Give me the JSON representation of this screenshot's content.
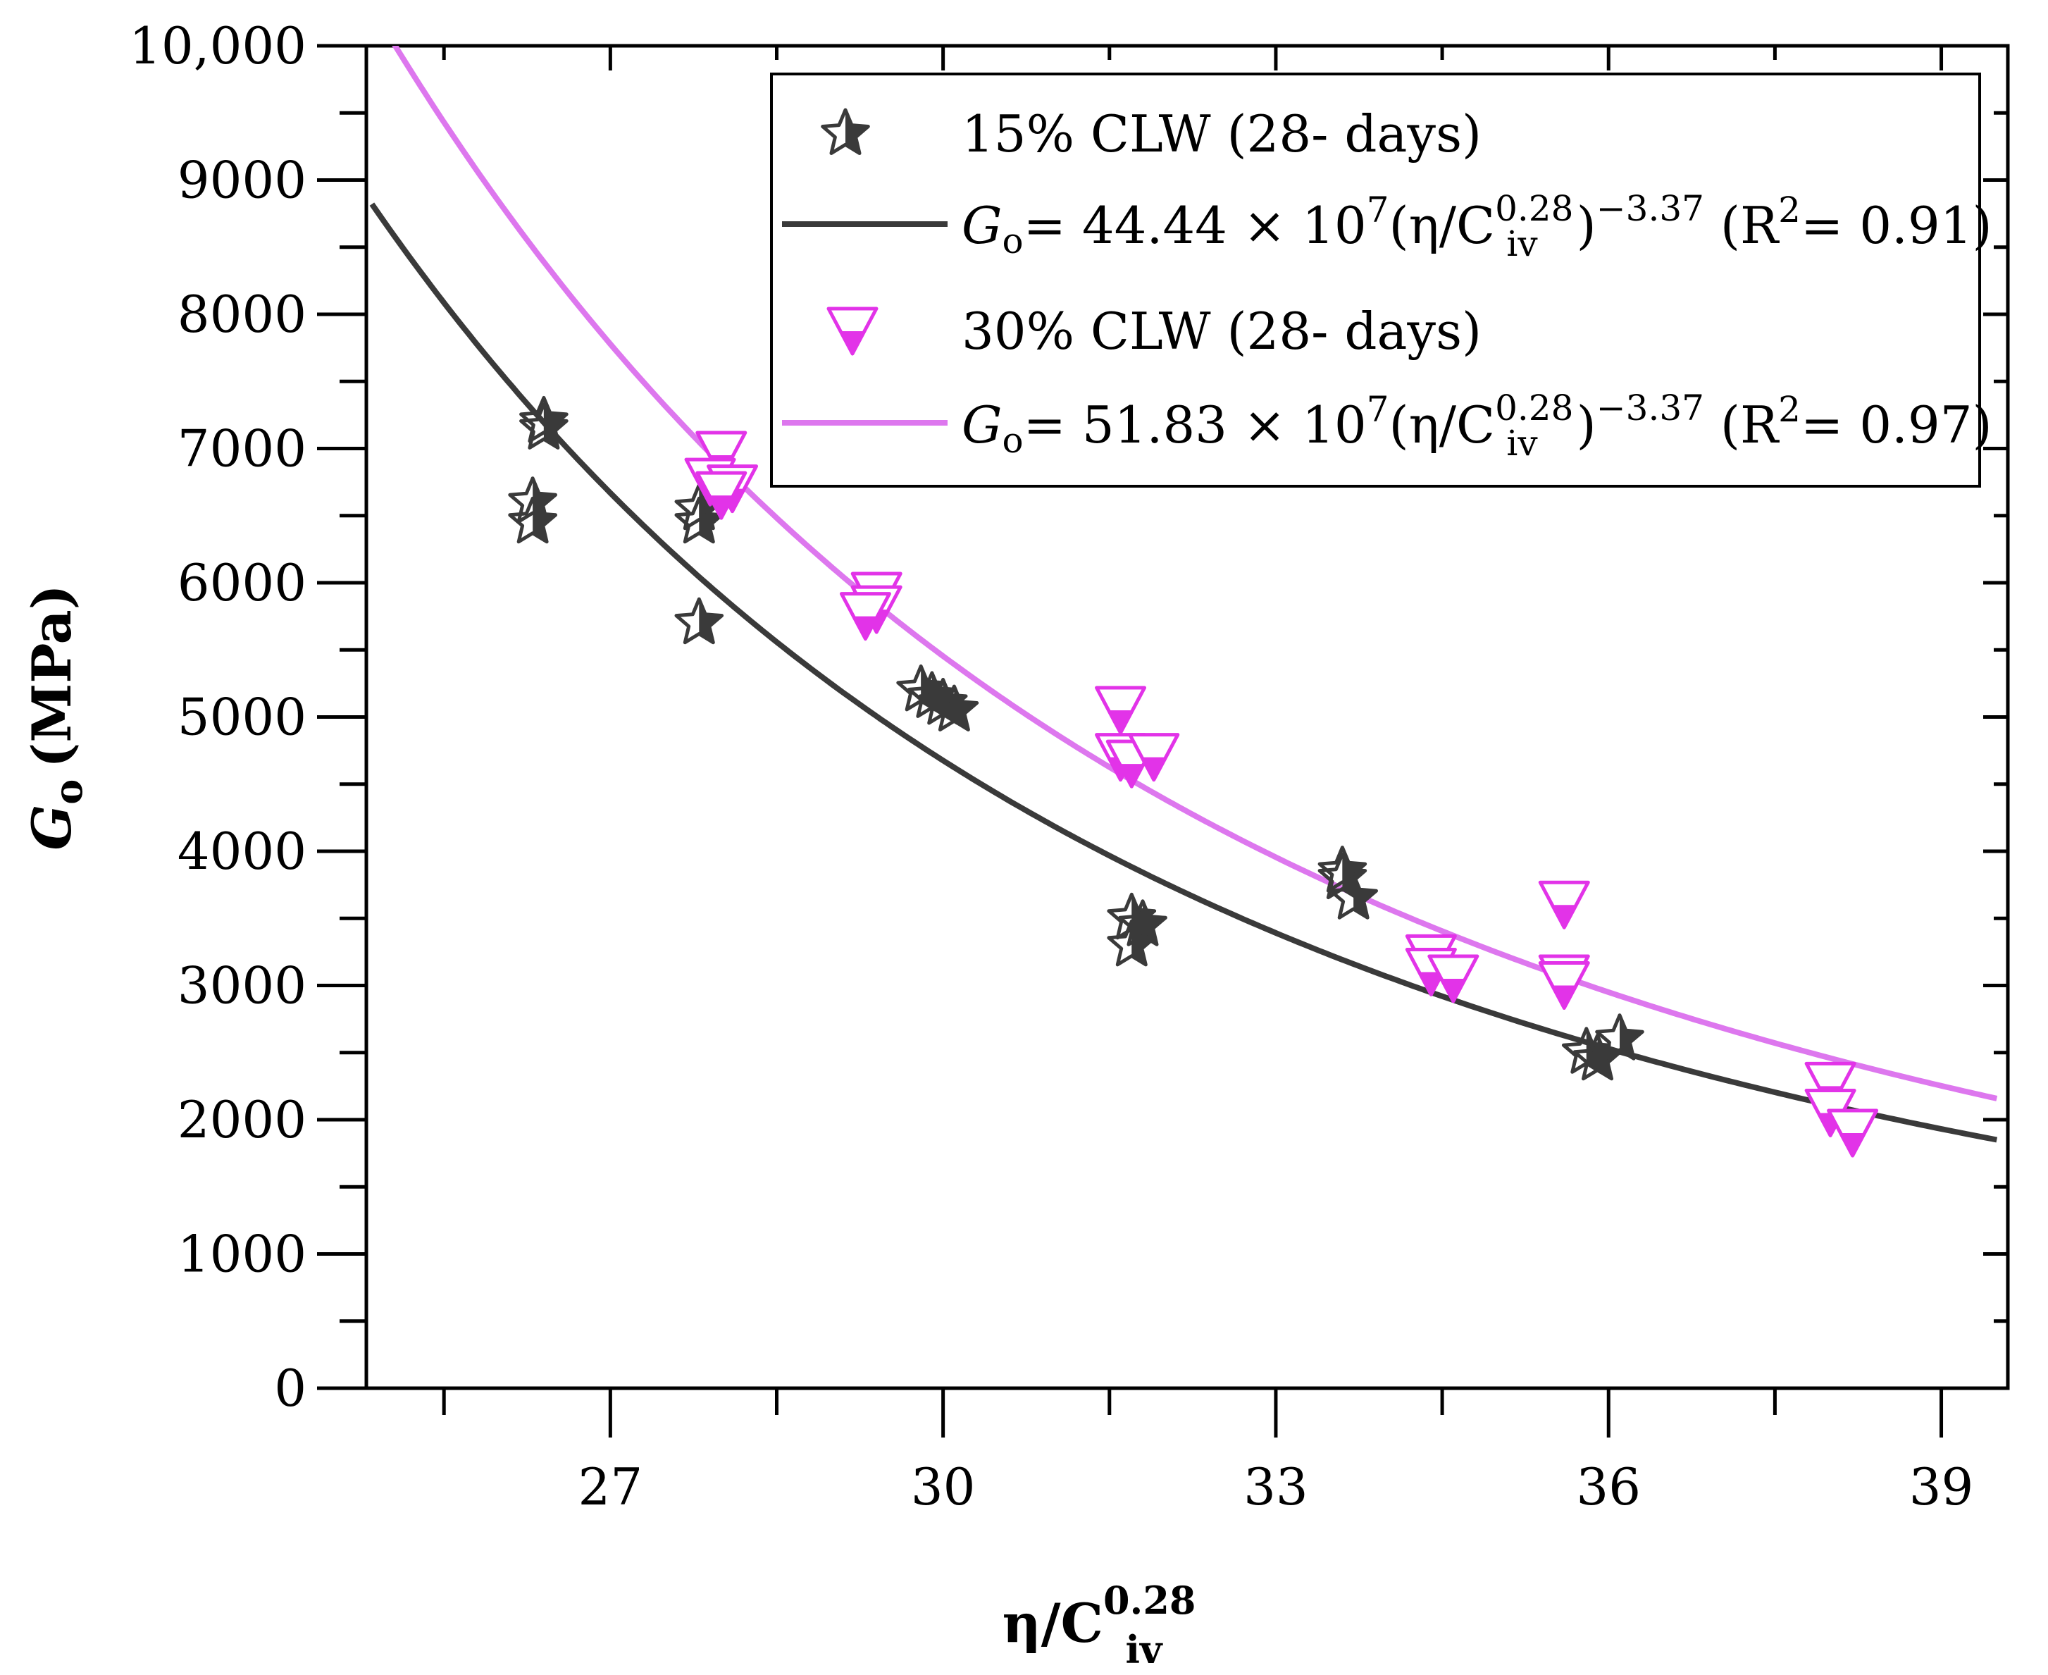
{
  "chart_data": {
    "type": "scatter",
    "xlabel": "η/C",
    "xlabel_sub": "iv",
    "xlabel_sup": "0.28",
    "ylabel": "G",
    "ylabel_sub": "o",
    "ylabel_unit": "(MPa)",
    "xlim": [
      24.8,
      39.6
    ],
    "ylim": [
      0,
      10000
    ],
    "x_ticks": [
      27,
      30,
      33,
      36,
      39
    ],
    "x_tick_labels": [
      "27",
      "30",
      "33",
      "36",
      "39"
    ],
    "x_minor_ticks": [
      25.5,
      28.5,
      31.5,
      34.5,
      37.5
    ],
    "y_ticks": [
      0,
      1000,
      2000,
      3000,
      4000,
      5000,
      6000,
      7000,
      8000,
      9000,
      10000
    ],
    "y_tick_labels": [
      "0",
      "1000",
      "2000",
      "3000",
      "4000",
      "5000",
      "6000",
      "7000",
      "8000",
      "9000",
      "10,000"
    ],
    "y_minor_ticks": [
      500,
      1500,
      2500,
      3500,
      4500,
      5500,
      6500,
      7500,
      8500,
      9500
    ],
    "legend_position": "top-right",
    "series": [
      {
        "name": "15% CLW (28- days)",
        "marker": "star",
        "color": "#3a3a3a",
        "points": [
          [
            26.4,
            7150
          ],
          [
            26.4,
            7200
          ],
          [
            26.3,
            6600
          ],
          [
            26.3,
            6450
          ],
          [
            27.8,
            6550
          ],
          [
            27.8,
            6450
          ],
          [
            27.8,
            5700
          ],
          [
            29.8,
            5200
          ],
          [
            29.9,
            5150
          ],
          [
            30.0,
            5100
          ],
          [
            30.1,
            5050
          ],
          [
            31.7,
            3500
          ],
          [
            31.8,
            3450
          ],
          [
            31.7,
            3300
          ],
          [
            33.6,
            3850
          ],
          [
            33.6,
            3800
          ],
          [
            33.7,
            3650
          ],
          [
            35.8,
            2500
          ],
          [
            35.9,
            2450
          ],
          [
            36.1,
            2600
          ]
        ]
      },
      {
        "name": "30% CLW (28- days)",
        "marker": "triangle-down",
        "color": "#e233e8",
        "points": [
          [
            28.0,
            6950
          ],
          [
            27.9,
            6750
          ],
          [
            28.1,
            6700
          ],
          [
            28.0,
            6650
          ],
          [
            29.4,
            5900
          ],
          [
            29.4,
            5800
          ],
          [
            29.3,
            5750
          ],
          [
            31.6,
            5050
          ],
          [
            31.6,
            4700
          ],
          [
            31.7,
            4650
          ],
          [
            31.9,
            4700
          ],
          [
            34.4,
            3200
          ],
          [
            34.4,
            3100
          ],
          [
            34.6,
            3050
          ],
          [
            35.6,
            3600
          ],
          [
            35.6,
            3050
          ],
          [
            35.6,
            3000
          ],
          [
            38.0,
            2250
          ],
          [
            38.0,
            2050
          ],
          [
            38.2,
            1900
          ]
        ]
      }
    ],
    "fit_lines": [
      {
        "name": "G_o = 44.44 × 10^7(η/C_iv^0.28)^−3.37 (R^2 = 0.91)",
        "color": "#3a3a3a",
        "a": 44.44,
        "exponent": -3.37
      },
      {
        "name": "G_o = 51.83 × 10^7(η/C_iv^0.28)^−3.37 (R^2 = 0.97)",
        "color": "#dd77ee",
        "a": 51.83,
        "exponent": -3.37
      }
    ]
  },
  "legend": {
    "entry1": "15% CLW (28- days)",
    "entry3": "30% CLW (28- days)",
    "fit1": {
      "g": "G",
      "o": "o",
      "eq": "= 44.44 × 10",
      "p7": "7",
      "mid": "(η/C",
      "sup": "0.28",
      "sub": "iv",
      "close": ")",
      "exp": "−3.37",
      "r": " (R",
      "r2": "2",
      "rval": "= 0.91)"
    },
    "fit2": {
      "g": "G",
      "o": "o",
      "eq": "= 51.83 × 10",
      "p7": "7",
      "mid": "(η/C",
      "sup": "0.28",
      "sub": "iv",
      "close": ")",
      "exp": "−3.37",
      "r": " (R",
      "r2": "2",
      "rval": "= 0.97)"
    }
  }
}
